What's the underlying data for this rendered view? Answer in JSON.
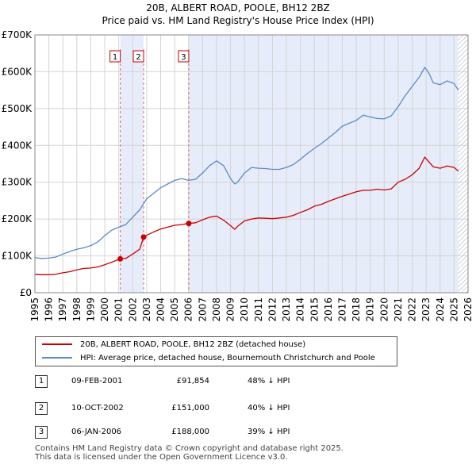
{
  "chart_data": {
    "type": "line",
    "title": "20B, ALBERT ROAD, POOLE, BH12 2BZ",
    "subtitle": "Price paid vs. HM Land Registry's House Price Index (HPI)",
    "xlim": [
      1995,
      2026
    ],
    "ylim": [
      0,
      700000
    ],
    "x_ticks": [
      "1995",
      "1996",
      "1997",
      "1998",
      "1999",
      "2000",
      "2001",
      "2002",
      "2003",
      "2004",
      "2005",
      "2006",
      "2007",
      "2008",
      "2009",
      "2010",
      "2011",
      "2012",
      "2013",
      "2014",
      "2015",
      "2016",
      "2017",
      "2018",
      "2019",
      "2020",
      "2021",
      "2022",
      "2023",
      "2024",
      "2025",
      "2026"
    ],
    "y_ticks": [
      {
        "value": 0,
        "label": "£0"
      },
      {
        "value": 100000,
        "label": "£100K"
      },
      {
        "value": 200000,
        "label": "£200K"
      },
      {
        "value": 300000,
        "label": "£300K"
      },
      {
        "value": 400000,
        "label": "£400K"
      },
      {
        "value": 500000,
        "label": "£500K"
      },
      {
        "value": 600000,
        "label": "£600K"
      },
      {
        "value": 700000,
        "label": "£700K"
      }
    ],
    "series": [
      {
        "name": "20B, ALBERT ROAD, POOLE, BH12 2BZ (detached house)",
        "color": "#cc0000",
        "x": [
          1995.0,
          1995.5,
          1996.0,
          1996.5,
          1997.0,
          1997.5,
          1998.0,
          1998.5,
          1999.0,
          1999.5,
          2000.0,
          2000.5,
          2001.1,
          2001.5,
          2002.0,
          2002.5,
          2002.78,
          2003.0,
          2003.5,
          2004.0,
          2004.5,
          2005.0,
          2005.5,
          2006.01,
          2006.5,
          2007.0,
          2007.5,
          2008.0,
          2008.5,
          2009.0,
          2009.3,
          2009.5,
          2010.0,
          2010.5,
          2011.0,
          2011.5,
          2012.0,
          2012.5,
          2013.0,
          2013.5,
          2014.0,
          2014.5,
          2015.0,
          2015.5,
          2016.0,
          2016.5,
          2017.0,
          2017.5,
          2018.0,
          2018.5,
          2019.0,
          2019.5,
          2020.0,
          2020.5,
          2021.0,
          2021.5,
          2022.0,
          2022.5,
          2022.9,
          2023.2,
          2023.5,
          2024.0,
          2024.5,
          2025.0,
          2025.3
        ],
        "y": [
          50000,
          49000,
          49000,
          50000,
          54000,
          57000,
          62000,
          66000,
          67000,
          70000,
          76000,
          83000,
          91854,
          93000,
          105000,
          118000,
          151000,
          156000,
          165000,
          173000,
          178000,
          183000,
          185000,
          188000,
          190000,
          198000,
          205000,
          208000,
          197000,
          182000,
          172000,
          180000,
          195000,
          200000,
          203000,
          202000,
          201000,
          203000,
          205000,
          210000,
          218000,
          225000,
          235000,
          240000,
          248000,
          255000,
          262000,
          268000,
          274000,
          278000,
          278000,
          281000,
          279000,
          282000,
          300000,
          308000,
          320000,
          338000,
          368000,
          355000,
          342000,
          338000,
          344000,
          340000,
          330000
        ]
      },
      {
        "name": "HPI: Average price, detached house, Bournemouth Christchurch and Poole",
        "color": "#5b8ac8",
        "x": [
          1995.0,
          1995.5,
          1996.0,
          1996.5,
          1997.0,
          1997.5,
          1998.0,
          1998.5,
          1999.0,
          1999.5,
          2000.0,
          2000.5,
          2001.0,
          2001.5,
          2002.0,
          2002.5,
          2003.0,
          2003.5,
          2004.0,
          2004.5,
          2005.0,
          2005.5,
          2006.0,
          2006.5,
          2007.0,
          2007.5,
          2008.0,
          2008.5,
          2009.0,
          2009.3,
          2009.5,
          2010.0,
          2010.5,
          2011.0,
          2011.5,
          2012.0,
          2012.5,
          2013.0,
          2013.5,
          2014.0,
          2014.5,
          2015.0,
          2015.5,
          2016.0,
          2016.5,
          2017.0,
          2017.5,
          2018.0,
          2018.5,
          2019.0,
          2019.5,
          2020.0,
          2020.5,
          2021.0,
          2021.5,
          2022.0,
          2022.5,
          2022.9,
          2023.2,
          2023.5,
          2024.0,
          2024.5,
          2025.0,
          2025.3
        ],
        "y": [
          95000,
          93000,
          94000,
          97000,
          105000,
          112000,
          118000,
          122000,
          128000,
          138000,
          155000,
          170000,
          178000,
          185000,
          205000,
          225000,
          255000,
          270000,
          285000,
          295000,
          305000,
          310000,
          305000,
          308000,
          325000,
          345000,
          358000,
          345000,
          310000,
          295000,
          300000,
          325000,
          340000,
          338000,
          337000,
          335000,
          335000,
          340000,
          348000,
          362000,
          378000,
          392000,
          405000,
          420000,
          435000,
          452000,
          460000,
          468000,
          482000,
          477000,
          473000,
          472000,
          480000,
          505000,
          535000,
          560000,
          585000,
          612000,
          596000,
          570000,
          565000,
          575000,
          568000,
          550000
        ]
      }
    ],
    "sales": [
      {
        "marker": "1",
        "x": 2001.11,
        "y": 91854
      },
      {
        "marker": "2",
        "x": 2002.78,
        "y": 151000
      },
      {
        "marker": "3",
        "x": 2006.01,
        "y": 188000
      }
    ],
    "shaded_spans": [
      [
        2001.11,
        2002.78
      ],
      [
        2006.01,
        2025.3
      ]
    ],
    "hatched_from": 2025.3,
    "grid": true,
    "legend_placement": "below"
  },
  "sales_table": [
    {
      "marker": "1",
      "date": "09-FEB-2001",
      "price": "£91,854",
      "hpi": "48% ↓ HPI"
    },
    {
      "marker": "2",
      "date": "10-OCT-2002",
      "price": "£151,000",
      "hpi": "40% ↓ HPI"
    },
    {
      "marker": "3",
      "date": "06-JAN-2006",
      "price": "£188,000",
      "hpi": "39% ↓ HPI"
    }
  ],
  "legend": {
    "property": "20B, ALBERT ROAD, POOLE, BH12 2BZ (detached house)",
    "hpi": "HPI: Average price, detached house, Bournemouth Christchurch and Poole"
  },
  "footer": {
    "line1": "Contains HM Land Registry data © Crown copyright and database right 2025.",
    "line2": "This data is licensed under the Open Government Licence v3.0."
  }
}
